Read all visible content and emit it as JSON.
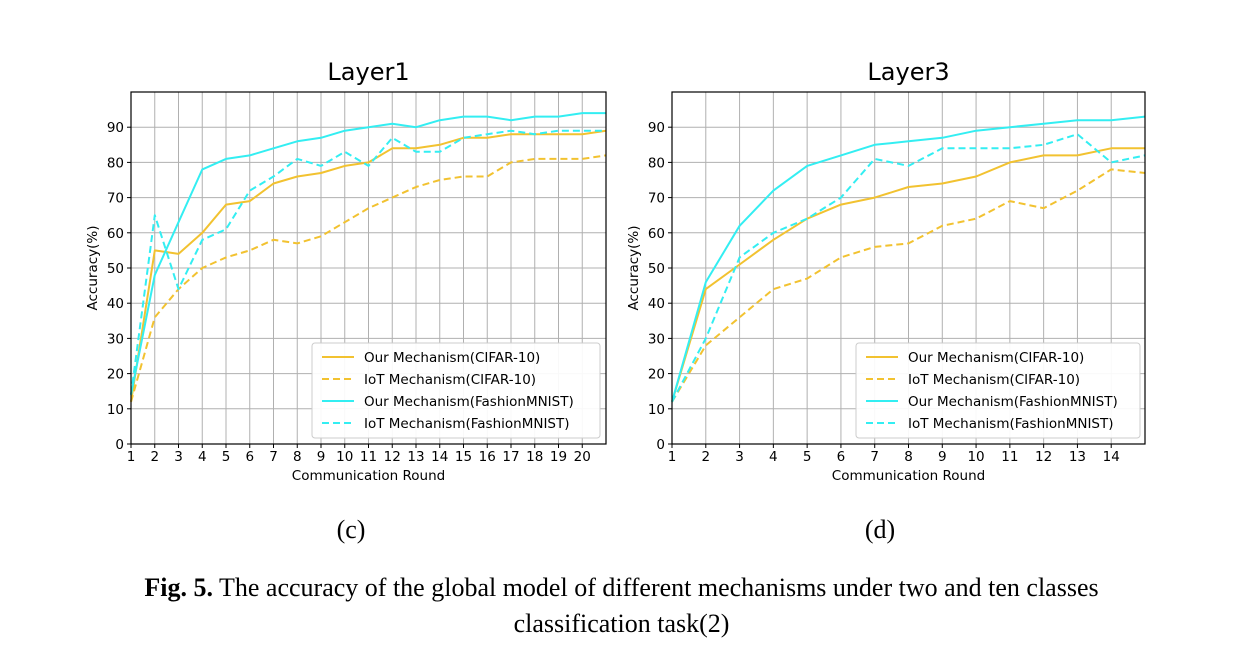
{
  "caption": {
    "label": "Fig. 5.",
    "line1": " The accuracy of the global model of different mechanisms under two and ten classes",
    "line2": "classification task(2)"
  },
  "colors": {
    "cifar": "#F2C230",
    "fashion": "#33EEF2",
    "grid": "#b0b0b0"
  },
  "chart_data": [
    {
      "type": "line",
      "title": "Layer1",
      "sublabel": "(c)",
      "xlabel": "Communication Round",
      "ylabel": "Accuracy(%)",
      "xlim": [
        1,
        21
      ],
      "ylim": [
        0,
        100
      ],
      "x_ticks": [
        1,
        2,
        3,
        4,
        5,
        6,
        7,
        8,
        9,
        10,
        11,
        12,
        13,
        14,
        15,
        16,
        17,
        18,
        19,
        20
      ],
      "y_ticks": [
        0,
        10,
        20,
        30,
        40,
        50,
        60,
        70,
        80,
        90
      ],
      "grid": true,
      "legend_position": "bottom-right",
      "x": [
        1,
        2,
        3,
        4,
        5,
        6,
        7,
        8,
        9,
        10,
        11,
        12,
        13,
        14,
        15,
        16,
        17,
        18,
        19,
        20,
        21
      ],
      "series": [
        {
          "name": "Our Mechanism(CIFAR-10)",
          "color": "cifar",
          "style": "solid",
          "values": [
            12,
            55,
            54,
            60,
            68,
            69,
            74,
            76,
            77,
            79,
            80,
            84,
            84,
            85,
            87,
            87,
            88,
            88,
            88,
            88,
            89
          ]
        },
        {
          "name": "IoT Mechanism(CIFAR-10)",
          "color": "cifar",
          "style": "dashed",
          "values": [
            12,
            36,
            44,
            50,
            53,
            55,
            58,
            57,
            59,
            63,
            67,
            70,
            73,
            75,
            76,
            76,
            80,
            81,
            81,
            81,
            82
          ]
        },
        {
          "name": "Our Mechanism(FashionMNIST)",
          "color": "fashion",
          "style": "solid",
          "values": [
            14,
            48,
            63,
            78,
            81,
            82,
            84,
            86,
            87,
            89,
            90,
            91,
            90,
            92,
            93,
            93,
            92,
            93,
            93,
            94,
            94
          ]
        },
        {
          "name": "IoT Mechanism(FashionMNIST)",
          "color": "fashion",
          "style": "dashed",
          "values": [
            14,
            65,
            44,
            58,
            61,
            72,
            76,
            81,
            79,
            83,
            79,
            87,
            83,
            83,
            87,
            88,
            89,
            88,
            89,
            89,
            89
          ]
        }
      ]
    },
    {
      "type": "line",
      "title": "Layer3",
      "sublabel": "(d)",
      "xlabel": "Communication Round",
      "ylabel": "Accuracy(%)",
      "xlim": [
        1,
        15
      ],
      "ylim": [
        0,
        100
      ],
      "x_ticks": [
        1,
        2,
        3,
        4,
        5,
        6,
        7,
        8,
        9,
        10,
        11,
        12,
        13,
        14
      ],
      "y_ticks": [
        0,
        10,
        20,
        30,
        40,
        50,
        60,
        70,
        80,
        90
      ],
      "grid": true,
      "legend_position": "bottom-right",
      "x": [
        1,
        2,
        3,
        4,
        5,
        6,
        7,
        8,
        9,
        10,
        11,
        12,
        13,
        14,
        15
      ],
      "series": [
        {
          "name": "Our Mechanism(CIFAR-10)",
          "color": "cifar",
          "style": "solid",
          "values": [
            12,
            44,
            51,
            58,
            64,
            68,
            70,
            73,
            74,
            76,
            80,
            82,
            82,
            84,
            84
          ]
        },
        {
          "name": "IoT Mechanism(CIFAR-10)",
          "color": "cifar",
          "style": "dashed",
          "values": [
            12,
            28,
            36,
            44,
            47,
            53,
            56,
            57,
            62,
            64,
            69,
            67,
            72,
            78,
            77
          ]
        },
        {
          "name": "Our Mechanism(FashionMNIST)",
          "color": "fashion",
          "style": "solid",
          "values": [
            12,
            46,
            62,
            72,
            79,
            82,
            85,
            86,
            87,
            89,
            90,
            91,
            92,
            92,
            93
          ]
        },
        {
          "name": "IoT Mechanism(FashionMNIST)",
          "color": "fashion",
          "style": "dashed",
          "values": [
            12,
            30,
            53,
            60,
            64,
            70,
            81,
            79,
            84,
            84,
            84,
            85,
            88,
            80,
            82
          ]
        }
      ]
    }
  ]
}
